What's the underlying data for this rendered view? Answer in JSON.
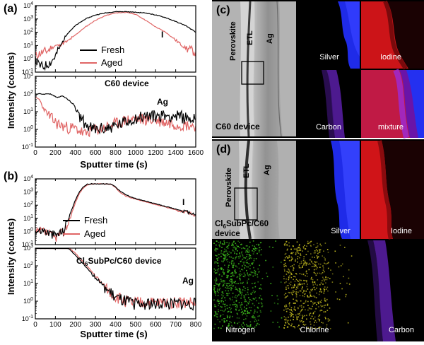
{
  "chart_data": [
    {
      "panel": "(a)",
      "type": "line",
      "xlabel": "Sputter time (s)",
      "ylabel": "Intensity (counts)",
      "xlim": [
        0,
        1600
      ],
      "x_ticks": [
        "0",
        "200",
        "400",
        "600",
        "800",
        "1000",
        "1200",
        "1400",
        "1600"
      ],
      "legend": [
        "Fresh",
        "Aged"
      ],
      "legend_colors": [
        "#000000",
        "#e06565"
      ],
      "subplots": [
        {
          "label": "I",
          "ylim_exp": [
            -1,
            4
          ],
          "y_ticks": [
            "10^-1",
            "10^0",
            "10^1",
            "10^2",
            "10^3",
            "10^4"
          ],
          "series": [
            {
              "name": "Fresh",
              "x": [
                0,
                40,
                80,
                120,
                160,
                200,
                240,
                280,
                320,
                400,
                500,
                600,
                700,
                800,
                900,
                1000,
                1100,
                1200,
                1300,
                1400,
                1500,
                1600
              ],
              "log10y": [
                -0.1,
                -0.5,
                -0.6,
                -0.4,
                -0.2,
                0.2,
                0.8,
                1.4,
                1.9,
                2.5,
                3.0,
                3.3,
                3.45,
                3.55,
                3.55,
                3.5,
                3.45,
                3.3,
                3.1,
                2.8,
                2.5,
                2.0
              ]
            },
            {
              "name": "Aged",
              "x": [
                0,
                40,
                80,
                120,
                160,
                200,
                240,
                280,
                320,
                400,
                500,
                600,
                700,
                800,
                900,
                1000,
                1100,
                1200,
                1300,
                1400,
                1500,
                1600
              ],
              "log10y": [
                0.2,
                0.4,
                0.5,
                0.6,
                0.8,
                1.0,
                1.0,
                1.2,
                1.3,
                1.8,
                2.4,
                2.9,
                3.25,
                3.45,
                3.5,
                3.35,
                2.9,
                2.4,
                2.0,
                1.4,
                0.8,
                0.5
              ]
            }
          ]
        },
        {
          "label": "Ag",
          "ylim_exp": [
            -1,
            3
          ],
          "y_ticks": [
            "10^-1",
            "10^0",
            "10^1",
            "10^2",
            "10^3"
          ],
          "series": [
            {
              "name": "Fresh",
              "x": [
                0,
                80,
                150,
                220,
                260,
                300,
                360,
                420,
                470,
                520,
                570,
                600,
                700,
                800,
                900,
                1000,
                1100,
                1200,
                1300,
                1400,
                1500,
                1600
              ],
              "log10y": [
                2.0,
                2.0,
                2.0,
                1.8,
                1.9,
                1.8,
                1.5,
                1.0,
                0.5,
                0.2,
                0.0,
                0.0,
                0.05,
                0.2,
                0.4,
                0.65,
                0.75,
                0.75,
                0.8,
                0.75,
                0.65,
                0.55
              ]
            },
            {
              "name": "Aged",
              "x": [
                0,
                40,
                80,
                120,
                160,
                200,
                260,
                320,
                380,
                420,
                470,
                500,
                540,
                600,
                700,
                800,
                900,
                1000,
                1100,
                1200,
                1300,
                1400,
                1500,
                1600
              ],
              "log10y": [
                1.8,
                1.7,
                1.2,
                0.9,
                0.6,
                0.4,
                0.2,
                0.1,
                0.05,
                0.0,
                -0.2,
                -0.3,
                -0.1,
                0.0,
                0.1,
                0.3,
                0.5,
                0.6,
                0.55,
                0.5,
                0.4,
                0.3,
                0.25,
                0.2
              ]
            }
          ]
        }
      ],
      "device_label": "C60 device"
    },
    {
      "panel": "(b)",
      "type": "line",
      "xlabel": "Sputter time (s)",
      "ylabel": "Intensity (counts)",
      "xlim": [
        0,
        800
      ],
      "x_ticks": [
        "0",
        "100",
        "200",
        "300",
        "400",
        "500",
        "600",
        "700",
        "800"
      ],
      "legend": [
        "Fresh",
        "Aged"
      ],
      "legend_colors": [
        "#000000",
        "#e06565"
      ],
      "subplots": [
        {
          "label": "I",
          "ylim_exp": [
            -1,
            4
          ],
          "y_ticks": [
            "10^-1",
            "10^0",
            "10^1",
            "10^2",
            "10^3",
            "10^4"
          ],
          "series": [
            {
              "name": "Fresh",
              "x": [
                0,
                40,
                80,
                100,
                120,
                140,
                160,
                180,
                200,
                220,
                240,
                260,
                280,
                300,
                340,
                380,
                400,
                420,
                450,
                500,
                550,
                600,
                650,
                700,
                750,
                800
              ],
              "log10y": [
                0.0,
                0.1,
                -0.2,
                -0.3,
                -0.1,
                0.0,
                0.8,
                1.6,
                2.4,
                3.0,
                3.4,
                3.6,
                3.62,
                3.62,
                3.62,
                3.6,
                3.4,
                3.1,
                2.8,
                2.5,
                2.3,
                2.1,
                1.9,
                1.7,
                1.5,
                1.3
              ]
            },
            {
              "name": "Aged",
              "x": [
                0,
                40,
                80,
                100,
                120,
                140,
                160,
                180,
                200,
                220,
                240,
                260,
                280,
                300,
                340,
                380,
                400,
                420,
                450,
                500,
                550,
                600,
                650,
                700,
                750,
                800
              ],
              "log10y": [
                -0.1,
                0.0,
                -0.3,
                -0.5,
                -0.2,
                -0.1,
                0.5,
                1.3,
                2.2,
                2.9,
                3.3,
                3.55,
                3.6,
                3.62,
                3.62,
                3.58,
                3.35,
                3.0,
                2.7,
                2.45,
                2.25,
                2.05,
                1.85,
                1.65,
                1.45,
                1.25
              ]
            }
          ]
        },
        {
          "label": "Ag",
          "ylim_exp": [
            -1,
            3
          ],
          "y_ticks": [
            "10^-1",
            "10^0",
            "10^1",
            "10^2",
            "10^3"
          ],
          "series": [
            {
              "name": "Fresh",
              "x": [
                0,
                40,
                80,
                120,
                150,
                170,
                200,
                240,
                280,
                320,
                360,
                400,
                440,
                480,
                520,
                560,
                600,
                640,
                680,
                720,
                760,
                800
              ],
              "log10y": [
                3.0,
                3.0,
                3.0,
                3.0,
                3.0,
                2.95,
                2.6,
                2.1,
                1.6,
                1.1,
                0.6,
                0.2,
                0.0,
                -0.1,
                -0.2,
                -0.1,
                -0.2,
                -0.1,
                -0.2,
                -0.1,
                -0.2,
                -0.15
              ]
            },
            {
              "name": "Aged",
              "x": [
                0,
                40,
                80,
                120,
                150,
                170,
                200,
                240,
                280,
                320,
                360,
                400,
                440,
                480,
                520,
                560,
                600,
                640,
                680,
                720,
                760,
                800
              ],
              "log10y": [
                3.0,
                3.0,
                3.0,
                3.0,
                3.0,
                3.0,
                2.7,
                2.2,
                1.7,
                1.15,
                0.65,
                0.25,
                0.05,
                -0.1,
                -0.1,
                -0.05,
                -0.15,
                -0.05,
                -0.1,
                -0.05,
                -0.1,
                -0.1
              ]
            }
          ]
        }
      ],
      "device_label": "Cl6SubPc/C60 device"
    }
  ],
  "panels": {
    "c": {
      "tag": "(c)",
      "sem_labels": {
        "perovskite": "Perovskite",
        "etl": "ETL",
        "ag": "Ag",
        "device": "C60 device"
      },
      "maps": {
        "silver": "Silver",
        "iodine": "Iodine",
        "carbon": "Carbon",
        "mixture": "mixture"
      }
    },
    "d": {
      "tag": "(d)",
      "sem_labels": {
        "perovskite": "Perovskite",
        "etl": "ETL",
        "ag": "Ag",
        "device_line1": "Cl",
        "device_sub": "6",
        "device_line1b": "SubPc/C60",
        "device_line2": "device"
      },
      "maps": {
        "silver": "Silver",
        "iodine": "Iodine",
        "nitrogen": "Nitrogen",
        "chlorine": "Chlorine",
        "carbon": "Carbon"
      }
    }
  },
  "colors": {
    "fresh": "#000000",
    "aged": "#e06565",
    "silver": "#2233ff",
    "iodine": "#d4161b",
    "carbon": "#7a2ad8",
    "nitrogen": "#3fbf1e",
    "chlorine": "#c8c020"
  }
}
